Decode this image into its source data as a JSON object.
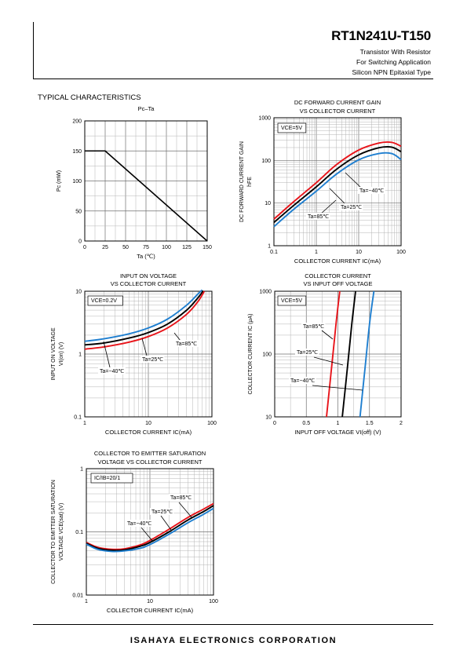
{
  "header": {
    "part_number": "RT1N241U-T150",
    "subtitle_lines": [
      "Transistor With Resistor",
      "For Switching Application",
      "Silicon NPN Epitaxial Type"
    ]
  },
  "section_title": "TYPICAL CHARACTERISTICS",
  "footer": "ISAHAYA ELECTRONICS CORPORATION",
  "colors": {
    "ta85": "#e8141a",
    "ta25": "#000000",
    "ta_m40": "#1f7fd0"
  },
  "chart_data": [
    {
      "id": "pc_ta",
      "type": "line",
      "title": [
        "Pc–Ta"
      ],
      "xlabel": "Ta (℃)",
      "ylabel": "Pc (mW)",
      "xlim": [
        0,
        150
      ],
      "ylim": [
        0,
        200
      ],
      "xscale": "linear",
      "yscale": "linear",
      "xticks": [
        0,
        25,
        50,
        75,
        100,
        125,
        150
      ],
      "xtick_labels": [
        "0",
        "25",
        "50",
        "75",
        "100",
        "125",
        "150"
      ],
      "yticks": [
        0,
        50,
        100,
        150,
        200
      ],
      "ytick_labels": [
        "0",
        "50",
        "100",
        "150",
        "200"
      ],
      "grid": true,
      "series": [
        {
          "color": "#000000",
          "x": [
            0,
            25,
            150
          ],
          "y": [
            150,
            150,
            0
          ]
        }
      ]
    },
    {
      "id": "hfe_ic",
      "type": "line",
      "title": [
        "DC FORWARD CURRENT GAIN",
        "VS COLLECTOR CURRENT"
      ],
      "xlabel": "COLLECTOR CURRENT  IC(mA)",
      "ylabel": [
        "DC FORWARD CURRENT GAIN",
        "hFE"
      ],
      "xlim": [
        0.1,
        100
      ],
      "ylim": [
        1,
        1000
      ],
      "xscale": "log",
      "yscale": "log",
      "xticks": [
        0.1,
        1,
        10,
        100
      ],
      "xtick_labels": [
        "0.1",
        "1",
        "10",
        "100"
      ],
      "yticks": [
        1,
        10,
        100,
        1000
      ],
      "ytick_labels": [
        "1",
        "10",
        "100",
        "1000"
      ],
      "grid": true,
      "condition": "VCE=5V",
      "series": [
        {
          "name": "Ta=85℃",
          "color": "#e8141a",
          "x": [
            0.1,
            0.3,
            1,
            3,
            10,
            30,
            60,
            100
          ],
          "y": [
            4.2,
            11,
            30,
            80,
            175,
            255,
            265,
            215
          ]
        },
        {
          "name": "Ta=25℃",
          "color": "#000000",
          "x": [
            0.1,
            0.3,
            1,
            3,
            10,
            30,
            60,
            100
          ],
          "y": [
            3.5,
            9,
            24,
            62,
            135,
            198,
            205,
            160
          ]
        },
        {
          "name": "Ta=−40℃",
          "color": "#1f7fd0",
          "x": [
            0.1,
            0.3,
            1,
            3,
            10,
            30,
            60,
            100
          ],
          "y": [
            2.8,
            7.3,
            19,
            48,
            103,
            145,
            145,
            105
          ]
        }
      ]
    },
    {
      "id": "vion_ic",
      "type": "line",
      "title": [
        "INPUT ON VOLTAGE",
        "VS COLLECTOR CURRENT"
      ],
      "xlabel": "COLLECTOR CURRENT  IC(mA)",
      "ylabel": [
        "INPUT ON VOLTAGE",
        "VI(on) (V)"
      ],
      "xlim": [
        1,
        100
      ],
      "ylim": [
        0.1,
        10
      ],
      "xscale": "log",
      "yscale": "log",
      "xticks": [
        1,
        10,
        100
      ],
      "xtick_labels": [
        "1",
        "10",
        "100"
      ],
      "yticks": [
        0.1,
        1,
        10
      ],
      "ytick_labels": [
        "0.1",
        "1",
        "10"
      ],
      "grid": true,
      "condition": "VCE=0.2V",
      "series": [
        {
          "name": "Ta=−40℃",
          "color": "#1f7fd0",
          "x": [
            1,
            2,
            5,
            10,
            20,
            40,
            60,
            70
          ],
          "y": [
            1.6,
            1.75,
            2.1,
            2.6,
            3.6,
            6,
            9,
            10.5
          ]
        },
        {
          "name": "Ta=25℃",
          "color": "#000000",
          "x": [
            1,
            2,
            5,
            10,
            20,
            40,
            60,
            73
          ],
          "y": [
            1.4,
            1.5,
            1.8,
            2.2,
            3.0,
            5,
            7.8,
            10.2
          ]
        },
        {
          "name": "Ta=85℃",
          "color": "#e8141a",
          "x": [
            1,
            2,
            5,
            10,
            20,
            40,
            60,
            76
          ],
          "y": [
            1.2,
            1.3,
            1.55,
            1.9,
            2.6,
            4.3,
            6.8,
            10.0
          ]
        }
      ]
    },
    {
      "id": "ic_vioff",
      "type": "line",
      "title": [
        "COLLECTOR CURRENT",
        "VS INPUT OFF VOLTAGE"
      ],
      "xlabel": "INPUT OFF VOLTAGE VI(off) (V)",
      "ylabel": "COLLECTOR CURRENT IC (μA)",
      "xlim": [
        0,
        2
      ],
      "ylim": [
        10,
        1000
      ],
      "xscale": "linear",
      "yscale": "log",
      "xticks": [
        0,
        0.5,
        1,
        1.5,
        2
      ],
      "xtick_labels": [
        "0",
        "0.5",
        "1",
        "1.5",
        "2"
      ],
      "yticks": [
        10,
        100,
        1000
      ],
      "ytick_labels": [
        "10",
        "100",
        "1000"
      ],
      "grid": true,
      "condition": "VCE=5V",
      "series": [
        {
          "name": "Ta=85℃",
          "color": "#e8141a",
          "x": [
            0.82,
            0.9,
            0.97,
            1.03
          ],
          "y": [
            10,
            60,
            300,
            1000
          ]
        },
        {
          "name": "Ta=25℃",
          "color": "#000000",
          "x": [
            1.07,
            1.15,
            1.22,
            1.28
          ],
          "y": [
            10,
            60,
            300,
            1000
          ]
        },
        {
          "name": "Ta=−40℃",
          "color": "#1f7fd0",
          "x": [
            1.35,
            1.43,
            1.5,
            1.57
          ],
          "y": [
            10,
            60,
            300,
            1000
          ]
        }
      ]
    },
    {
      "id": "vcesat_ic",
      "type": "line",
      "title": [
        "COLLECTOR TO EMITTER SATURATION",
        "VOLTAGE VS COLLECTOR CURRENT"
      ],
      "xlabel": "COLLECTOR CURRENT  IC(mA)",
      "ylabel": [
        "COLLECTOR TO EMITTER SATURATION",
        "VOLTAGE VCE(sat) (V)"
      ],
      "xlim": [
        1,
        100
      ],
      "ylim": [
        0.01,
        1
      ],
      "xscale": "log",
      "yscale": "log",
      "xticks": [
        1,
        10,
        100
      ],
      "xtick_labels": [
        "1",
        "10",
        "100"
      ],
      "yticks": [
        0.01,
        0.1,
        1
      ],
      "ytick_labels": [
        "0.01",
        "0.1",
        "1"
      ],
      "grid": true,
      "condition": "IC/IB=20/1",
      "series": [
        {
          "name": "Ta=85℃",
          "color": "#e8141a",
          "x": [
            1,
            1.5,
            2.5,
            4,
            7,
            10,
            20,
            40,
            70,
            100
          ],
          "y": [
            0.068,
            0.057,
            0.053,
            0.054,
            0.062,
            0.073,
            0.11,
            0.17,
            0.23,
            0.28
          ]
        },
        {
          "name": "Ta=25℃",
          "color": "#000000",
          "x": [
            1,
            1.5,
            2.5,
            4,
            7,
            10,
            20,
            40,
            70,
            100
          ],
          "y": [
            0.066,
            0.055,
            0.051,
            0.052,
            0.059,
            0.068,
            0.1,
            0.155,
            0.21,
            0.26
          ]
        },
        {
          "name": "Ta=−40℃",
          "color": "#1f7fd0",
          "x": [
            1,
            1.5,
            2.5,
            4,
            7,
            10,
            20,
            40,
            70,
            100
          ],
          "y": [
            0.064,
            0.053,
            0.049,
            0.05,
            0.055,
            0.063,
            0.092,
            0.14,
            0.19,
            0.235
          ]
        }
      ]
    }
  ]
}
